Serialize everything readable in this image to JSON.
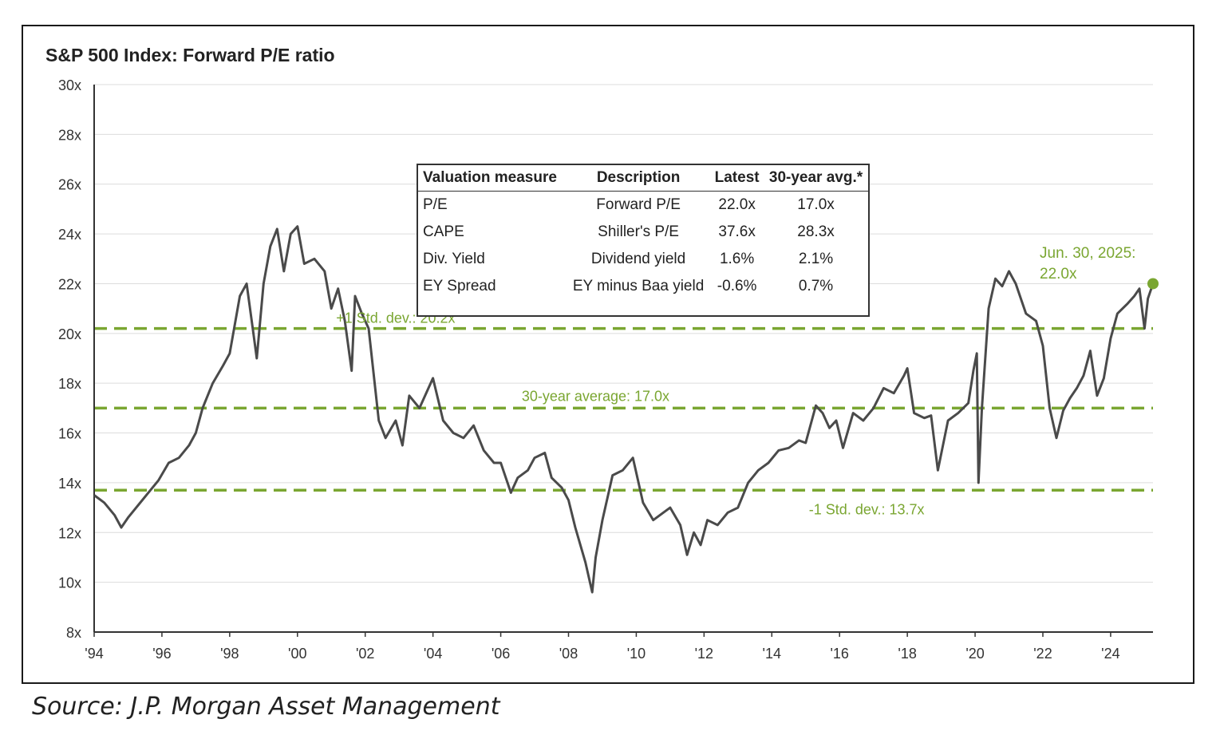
{
  "chart_data": {
    "type": "line",
    "title": "S&P 500 Index: Forward P/E ratio",
    "xlabel": "",
    "ylabel": "",
    "ylim": [
      8,
      30
    ],
    "xlim": [
      1994,
      2025.25
    ],
    "y_ticks": [
      8,
      10,
      12,
      14,
      16,
      18,
      20,
      22,
      24,
      26,
      28,
      30
    ],
    "y_tick_labels": [
      "8x",
      "10x",
      "12x",
      "14x",
      "16x",
      "18x",
      "20x",
      "22x",
      "24x",
      "26x",
      "28x",
      "30x"
    ],
    "x_ticks": [
      1994,
      1996,
      1998,
      2000,
      2002,
      2004,
      2006,
      2008,
      2010,
      2012,
      2014,
      2016,
      2018,
      2020,
      2022,
      2024
    ],
    "x_tick_labels": [
      "'94",
      "'96",
      "'98",
      "'00",
      "'02",
      "'04",
      "'06",
      "'08",
      "'10",
      "'12",
      "'14",
      "'16",
      "'18",
      "'20",
      "'22",
      "'24"
    ],
    "grid": true,
    "series": [
      {
        "name": "Forward P/E",
        "color": "#4a4a4a",
        "x": [
          1994.0,
          1994.3,
          1994.6,
          1994.8,
          1995.0,
          1995.3,
          1995.6,
          1995.9,
          1996.2,
          1996.5,
          1996.8,
          1997.0,
          1997.2,
          1997.5,
          1997.8,
          1998.0,
          1998.3,
          1998.5,
          1998.7,
          1998.8,
          1999.0,
          1999.2,
          1999.4,
          1999.6,
          1999.8,
          2000.0,
          2000.2,
          2000.5,
          2000.8,
          2001.0,
          2001.2,
          2001.4,
          2001.6,
          2001.7,
          2001.9,
          2002.1,
          2002.4,
          2002.6,
          2002.9,
          2003.1,
          2003.3,
          2003.6,
          2003.8,
          2004.0,
          2004.3,
          2004.6,
          2004.9,
          2005.2,
          2005.5,
          2005.8,
          2006.0,
          2006.3,
          2006.5,
          2006.8,
          2007.0,
          2007.3,
          2007.5,
          2007.8,
          2008.0,
          2008.2,
          2008.5,
          2008.7,
          2008.8,
          2009.0,
          2009.3,
          2009.6,
          2009.9,
          2010.2,
          2010.5,
          2010.8,
          2011.0,
          2011.3,
          2011.5,
          2011.7,
          2011.9,
          2012.1,
          2012.4,
          2012.7,
          2013.0,
          2013.3,
          2013.6,
          2013.9,
          2014.2,
          2014.5,
          2014.8,
          2015.0,
          2015.3,
          2015.5,
          2015.7,
          2015.9,
          2016.1,
          2016.4,
          2016.7,
          2017.0,
          2017.3,
          2017.6,
          2017.9,
          2018.0,
          2018.2,
          2018.5,
          2018.7,
          2018.9,
          2019.2,
          2019.5,
          2019.8,
          2019.95,
          2020.05,
          2020.1,
          2020.2,
          2020.4,
          2020.6,
          2020.8,
          2021.0,
          2021.2,
          2021.5,
          2021.8,
          2022.0,
          2022.2,
          2022.4,
          2022.6,
          2022.8,
          2023.0,
          2023.2,
          2023.4,
          2023.6,
          2023.8,
          2024.0,
          2024.2,
          2024.5,
          2024.7,
          2024.85,
          2025.0,
          2025.1,
          2025.25
        ],
        "y": [
          13.5,
          13.2,
          12.7,
          12.2,
          12.6,
          13.1,
          13.6,
          14.1,
          14.8,
          15.0,
          15.5,
          16.0,
          17.0,
          18.0,
          18.7,
          19.2,
          21.5,
          22.0,
          20.0,
          19.0,
          22.0,
          23.5,
          24.2,
          22.5,
          24.0,
          24.3,
          22.8,
          23.0,
          22.5,
          21.0,
          21.8,
          20.5,
          18.5,
          21.5,
          20.8,
          20.2,
          16.5,
          15.8,
          16.5,
          15.5,
          17.5,
          17.0,
          17.6,
          18.2,
          16.5,
          16.0,
          15.8,
          16.3,
          15.3,
          14.8,
          14.8,
          13.6,
          14.2,
          14.5,
          15.0,
          15.2,
          14.2,
          13.8,
          13.3,
          12.2,
          10.8,
          9.6,
          11.0,
          12.5,
          14.3,
          14.5,
          15.0,
          13.2,
          12.5,
          12.8,
          13.0,
          12.3,
          11.1,
          12.0,
          11.5,
          12.5,
          12.3,
          12.8,
          13.0,
          14.0,
          14.5,
          14.8,
          15.3,
          15.4,
          15.7,
          15.6,
          17.1,
          16.8,
          16.2,
          16.5,
          15.4,
          16.8,
          16.5,
          17.0,
          17.8,
          17.6,
          18.3,
          18.6,
          16.8,
          16.6,
          16.7,
          14.5,
          16.5,
          16.8,
          17.2,
          18.5,
          19.2,
          14.0,
          17.0,
          21.0,
          22.2,
          21.9,
          22.5,
          22.0,
          20.8,
          20.5,
          19.5,
          17.0,
          15.8,
          16.9,
          17.4,
          17.8,
          18.3,
          19.3,
          17.5,
          18.2,
          19.8,
          20.8,
          21.2,
          21.5,
          21.8,
          20.2,
          21.4,
          22.0
        ]
      }
    ],
    "reference_lines": [
      {
        "label": "+1 Std. dev.: 20.2x",
        "value": 20.2,
        "color": "#7aa631"
      },
      {
        "label": "30-year average: 17.0x",
        "value": 17.0,
        "color": "#7aa631"
      },
      {
        "label": "-1 Std. dev.: 13.7x",
        "value": 13.7,
        "color": "#7aa631"
      }
    ],
    "end_point": {
      "x": 2025.25,
      "y": 22.0,
      "label_line1": "Jun. 30, 2025:",
      "label_line2": "22.0x",
      "color": "#7aa631"
    },
    "table": {
      "headers": [
        "Valuation measure",
        "Description",
        "Latest",
        "30-year avg.*"
      ],
      "rows": [
        [
          "P/E",
          "Forward P/E",
          "22.0x",
          "17.0x"
        ],
        [
          "CAPE",
          "Shiller's P/E",
          "37.6x",
          "28.3x"
        ],
        [
          "Div. Yield",
          "Dividend yield",
          "1.6%",
          "2.1%"
        ],
        [
          "EY Spread",
          "EY minus Baa yield",
          "-0.6%",
          "0.7%"
        ]
      ]
    }
  },
  "source": "Source:  J.P. Morgan Asset Management"
}
